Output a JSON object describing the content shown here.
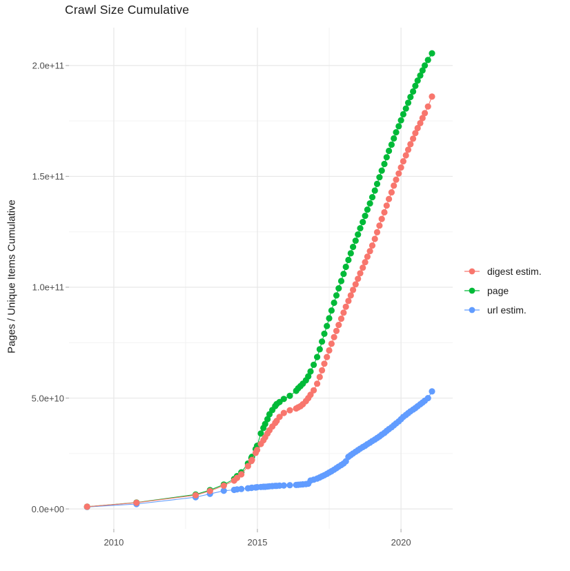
{
  "chart": {
    "title": "Crawl Size Cumulative",
    "ylabel": "Pages / Unique Items Cumulative",
    "xlabel": ""
  },
  "legend": {
    "position": "right"
  },
  "chart_data": {
    "type": "scatter",
    "title": "Crawl Size Cumulative",
    "xlabel": "",
    "ylabel": "Pages / Unique Items Cumulative",
    "y_unit": "pages (values stored in billions, i.e. 1e9)",
    "xlim": [
      2008.44,
      2021.8
    ],
    "ylim": [
      -9.0,
      217.1
    ],
    "grid": "major and minor light-gray gridlines on white background",
    "legend_position": "right",
    "x_ticks": [
      {
        "v": 2010,
        "label": "2010"
      },
      {
        "v": 2015,
        "label": "2015"
      },
      {
        "v": 2020,
        "label": "2020"
      }
    ],
    "x_minor_ticks": [
      2012.5,
      2017.5
    ],
    "y_ticks": [
      {
        "v": 0,
        "label": "0.0e+00"
      },
      {
        "v": 50,
        "label": "5.0e+10"
      },
      {
        "v": 100,
        "label": "1.0e+11"
      },
      {
        "v": 150,
        "label": "1.5e+11"
      },
      {
        "v": 200,
        "label": "2.0e+11"
      }
    ],
    "y_minor_ticks": [
      25,
      75,
      125,
      175
    ],
    "style": {
      "background": "#ffffff",
      "major_grid": "#e7e7e7",
      "minor_grid": "#f3f3f3",
      "tick": "#b3b3b3",
      "tick_label": "#4d4d4d"
    },
    "x": [
      2009.07,
      2010.79,
      2012.85,
      2013.35,
      2013.83,
      2014.19,
      2014.29,
      2014.44,
      2014.67,
      2014.79,
      2014.81,
      2014.94,
      2014.99,
      2015.12,
      2015.21,
      2015.27,
      2015.35,
      2015.42,
      2015.52,
      2015.62,
      2015.67,
      2015.77,
      2015.92,
      2016.13,
      2016.35,
      2016.42,
      2016.5,
      2016.58,
      2016.69,
      2016.77,
      2016.85,
      2016.96,
      2017.08,
      2017.17,
      2017.25,
      2017.33,
      2017.42,
      2017.5,
      2017.58,
      2017.67,
      2017.75,
      2017.83,
      2017.92,
      2018.0,
      2018.08,
      2018.17,
      2018.25,
      2018.33,
      2018.42,
      2018.5,
      2018.58,
      2018.67,
      2018.75,
      2018.83,
      2018.92,
      2019.0,
      2019.09,
      2019.17,
      2019.25,
      2019.33,
      2019.42,
      2019.5,
      2019.58,
      2019.67,
      2019.75,
      2019.83,
      2019.92,
      2020.0,
      2020.08,
      2020.17,
      2020.25,
      2020.33,
      2020.42,
      2020.5,
      2020.58,
      2020.67,
      2020.75,
      2020.83,
      2020.94,
      2021.08
    ],
    "series": [
      {
        "name": "digest estim.",
        "color": "#F8766D",
        "y": [
          1.0,
          2.8,
          6.2,
          8.1,
          10.5,
          12.8,
          14.0,
          15.6,
          19.3,
          21.6,
          22.1,
          25.3,
          26.6,
          29.3,
          31.0,
          32.3,
          34.0,
          35.5,
          37.2,
          38.8,
          39.7,
          41.5,
          43.3,
          44.5,
          45.3,
          45.8,
          46.3,
          47.2,
          48.6,
          50.0,
          51.5,
          53.5,
          56.5,
          59.5,
          62.5,
          65.5,
          68.5,
          71.5,
          74.5,
          77.5,
          80.3,
          83.0,
          85.8,
          88.5,
          91.2,
          93.8,
          96.3,
          98.8,
          101.3,
          103.8,
          106.3,
          108.8,
          111.3,
          113.8,
          116.3,
          118.8,
          121.8,
          124.8,
          127.8,
          130.8,
          133.8,
          136.8,
          139.8,
          142.8,
          145.8,
          148.5,
          151.3,
          154.0,
          156.8,
          159.5,
          162.0,
          164.5,
          167.0,
          169.5,
          171.8,
          174.0,
          176.3,
          178.5,
          181.5,
          186.0
        ]
      },
      {
        "name": "page",
        "color": "#00BA38",
        "y": [
          1.0,
          2.9,
          6.5,
          8.5,
          11.0,
          13.5,
          14.8,
          16.5,
          20.5,
          23.0,
          23.5,
          27.0,
          28.5,
          34.0,
          36.5,
          38.3,
          40.5,
          42.7,
          44.6,
          46.4,
          47.3,
          48.2,
          49.6,
          51.0,
          53.3,
          54.4,
          55.4,
          56.5,
          58.0,
          59.8,
          62.0,
          65.0,
          68.5,
          72.0,
          75.5,
          79.0,
          82.5,
          86.0,
          89.5,
          93.0,
          96.3,
          99.5,
          102.8,
          106.0,
          109.2,
          112.3,
          115.3,
          118.2,
          121.0,
          123.8,
          126.6,
          129.4,
          132.2,
          135.0,
          137.8,
          140.6,
          143.6,
          146.6,
          149.6,
          152.6,
          155.6,
          158.6,
          161.5,
          164.3,
          167.1,
          169.9,
          172.6,
          175.3,
          178.0,
          180.6,
          183.2,
          185.8,
          188.3,
          190.8,
          193.2,
          195.5,
          197.8,
          200.0,
          202.5,
          205.5
        ]
      },
      {
        "name": "url estim.",
        "color": "#619CFF",
        "y": [
          0.9,
          2.2,
          5.3,
          6.8,
          8.2,
          8.6,
          8.8,
          9.0,
          9.3,
          9.5,
          9.6,
          9.7,
          9.8,
          9.9,
          10.0,
          10.0,
          10.1,
          10.2,
          10.3,
          10.4,
          10.4,
          10.5,
          10.6,
          10.7,
          10.8,
          10.9,
          11.0,
          11.1,
          11.2,
          11.4,
          12.8,
          13.2,
          13.7,
          14.2,
          14.7,
          15.2,
          15.8,
          16.4,
          17.0,
          17.7,
          18.4,
          19.1,
          19.8,
          20.5,
          21.5,
          23.5,
          24.3,
          25.0,
          25.8,
          26.5,
          27.2,
          27.9,
          28.5,
          29.2,
          29.9,
          30.6,
          31.3,
          32.0,
          32.7,
          33.5,
          34.3,
          35.2,
          36.0,
          36.8,
          37.7,
          38.6,
          39.5,
          40.5,
          41.5,
          42.4,
          43.2,
          44.0,
          44.8,
          45.5,
          46.3,
          47.2,
          48.0,
          48.8,
          50.0,
          53.0
        ]
      }
    ]
  }
}
